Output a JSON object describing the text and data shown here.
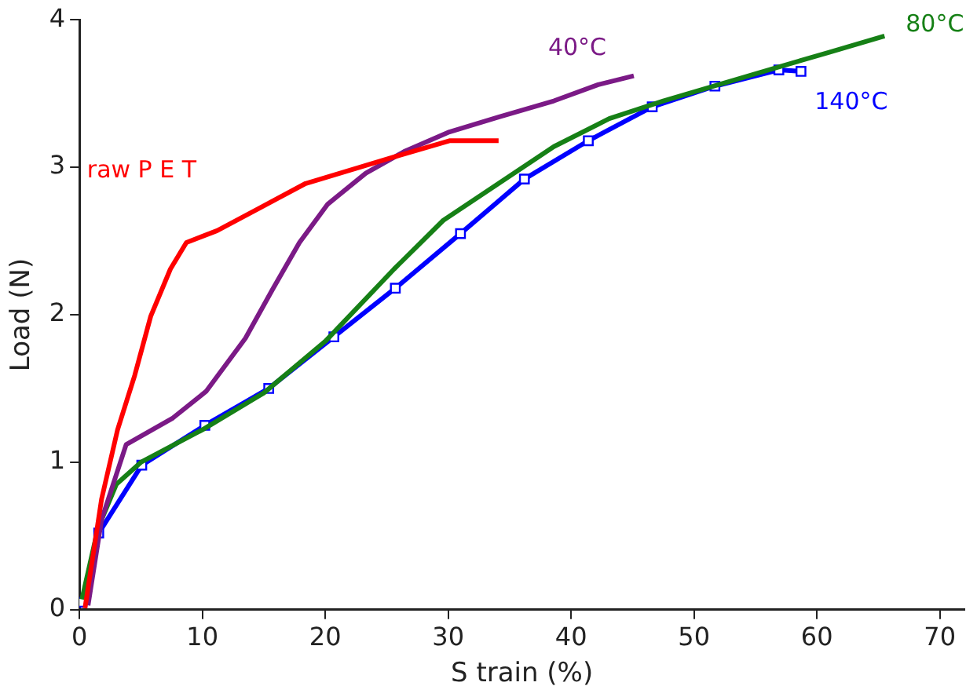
{
  "chart_data": {
    "type": "line",
    "xlabel": "S train (%)",
    "ylabel": "Load (N)",
    "xlim": [
      0,
      72
    ],
    "ylim": [
      0,
      4
    ],
    "xticks": [
      0,
      10,
      20,
      30,
      40,
      50,
      60,
      70
    ],
    "yticks": [
      0,
      1,
      2,
      3,
      4
    ],
    "grid": false,
    "legend": false,
    "marker": "none",
    "series": [
      {
        "name": "raw P E T",
        "color": "#ff0000",
        "x": [
          0.45,
          1.8,
          3.1,
          4.5,
          5.8,
          7.4,
          8.7,
          11.2,
          14.8,
          18.4,
          22.0,
          25.6,
          30.1,
          34.1
        ],
        "values": [
          0.01,
          0.75,
          1.22,
          1.59,
          1.99,
          2.31,
          2.49,
          2.57,
          2.73,
          2.89,
          2.98,
          3.07,
          3.18,
          3.18
        ]
      },
      {
        "name": "40°C",
        "color": "#7b1a86",
        "x": [
          0.7,
          1.8,
          3.8,
          7.6,
          10.3,
          13.5,
          15.7,
          17.9,
          20.2,
          23.3,
          26.5,
          30.1,
          34.1,
          38.6,
          42.2,
          45.1
        ],
        "values": [
          0.03,
          0.61,
          1.12,
          1.3,
          1.48,
          1.84,
          2.17,
          2.49,
          2.75,
          2.96,
          3.11,
          3.24,
          3.34,
          3.45,
          3.56,
          3.62
        ]
      },
      {
        "name": "80°C",
        "color": "#168016",
        "x": [
          0.2,
          1.5,
          3,
          5,
          10,
          15,
          20,
          25.6,
          29.6,
          34.1,
          38.6,
          43.1,
          47.5,
          52.0,
          56.5,
          61.0,
          65.5
        ],
        "values": [
          0.07,
          0.55,
          0.85,
          1.0,
          1.22,
          1.47,
          1.82,
          2.31,
          2.64,
          2.89,
          3.14,
          3.33,
          3.45,
          3.56,
          3.67,
          3.78,
          3.89
        ]
      },
      {
        "name": "140°C",
        "color": "#0000ff",
        "marker": "square",
        "x": [
          0.2,
          1.57,
          5.07,
          10.2,
          15.4,
          20.7,
          25.7,
          31.0,
          36.2,
          41.4,
          46.6,
          51.7,
          56.9,
          58.7
        ],
        "values": [
          0.05,
          0.52,
          0.98,
          1.25,
          1.5,
          1.85,
          2.18,
          2.55,
          2.92,
          3.18,
          3.41,
          3.55,
          3.66,
          3.65
        ]
      }
    ]
  }
}
